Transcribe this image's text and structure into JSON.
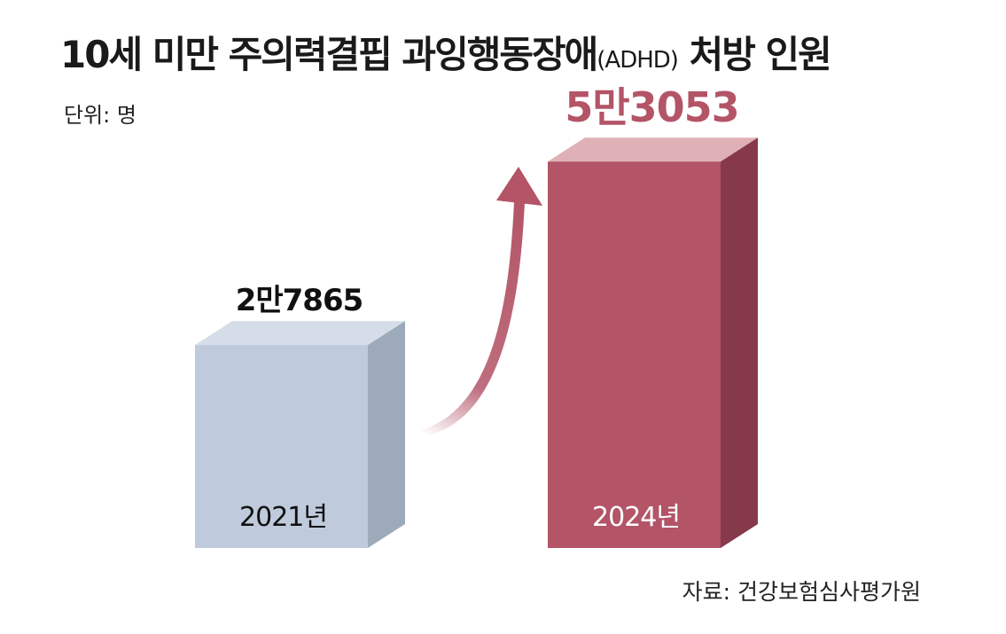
{
  "title": {
    "main": "10세 미만 주의력결핍 과잉행동장애",
    "abbr": "(ADHD)",
    "tail": " 처방 인원"
  },
  "unit_label": "단위: 명",
  "source_label": "자료: 건강보험심사평가원",
  "colors": {
    "bar_2021_front": "#bfcbdc",
    "bar_2021_top": "#d4dde8",
    "bar_2021_side": "#9daab9",
    "bar_2024_front": "#b35467",
    "bar_2024_top": "#dfb0b6",
    "bar_2024_side": "#86394a",
    "arrow": "#b35467",
    "value_2024_text": "#b35467"
  },
  "chart_data": {
    "type": "bar",
    "categories": [
      "2021년",
      "2024년"
    ],
    "values": [
      27865,
      53053
    ],
    "value_labels": [
      "2만7865",
      "5만3053"
    ],
    "ylim": [
      0,
      56000
    ],
    "grid": false,
    "legend": "none"
  }
}
